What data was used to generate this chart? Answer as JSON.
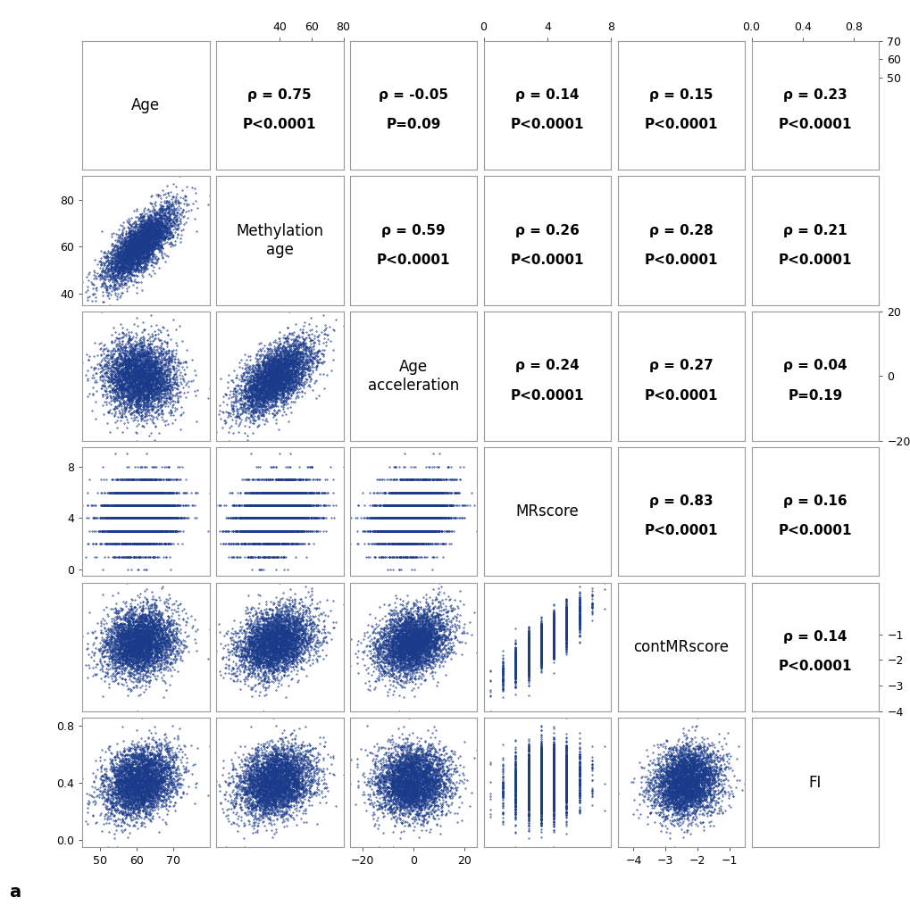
{
  "n_vars": 6,
  "dot_color": "#1a3a8a",
  "dot_size": 2.5,
  "dot_alpha": 0.6,
  "background_color": "#ffffff",
  "panel_edge_color": "#999999",
  "corr_display": [
    [
      "",
      "ρ = 0.75\nP<0.0001",
      "ρ = -0.05\nP=0.09",
      "ρ = 0.14\nP<0.0001",
      "ρ = 0.15\nP<0.0001",
      "ρ = 0.23\nP<0.0001"
    ],
    [
      "",
      "",
      "ρ = 0.59\nP<0.0001",
      "ρ = 0.26\nP<0.0001",
      "ρ = 0.28\nP<0.0001",
      "ρ = 0.21\nP<0.0001"
    ],
    [
      "",
      "",
      "",
      "ρ = 0.24\nP<0.0001",
      "ρ = 0.27\nP<0.0001",
      "ρ = 0.04\nP=0.19"
    ],
    [
      "",
      "",
      "",
      "",
      "ρ = 0.83\nP<0.0001",
      "ρ = 0.16\nP<0.0001"
    ],
    [
      "",
      "",
      "",
      "",
      "",
      "ρ = 0.14\nP<0.0001"
    ],
    [
      "",
      "",
      "",
      "",
      "",
      ""
    ]
  ],
  "diag_labels": [
    "Age",
    "Methylation\nage",
    "Age\nacceleration",
    "MRscore",
    "contMRscore",
    "FI"
  ],
  "ranges": [
    [
      45,
      80
    ],
    [
      35,
      90
    ],
    [
      -25,
      25
    ],
    [
      -0.5,
      9.5
    ],
    [
      -4.5,
      -0.5
    ],
    [
      -0.05,
      0.85
    ]
  ],
  "top_ticks": {
    "1": [
      40,
      60,
      80
    ],
    "3": [
      0,
      4,
      8
    ],
    "5": [
      0.0,
      0.4,
      0.8
    ]
  },
  "right_ticks": {
    "0": [
      50,
      60,
      70
    ],
    "2": [
      -20,
      0,
      20
    ],
    "4": [
      -4,
      -3,
      -2,
      -1
    ]
  },
  "bottom_ticks": {
    "0": [
      50,
      60,
      70
    ],
    "2": [
      -20,
      0,
      20
    ],
    "4": [
      -4,
      -3,
      -2,
      -1
    ]
  },
  "left_ticks": {
    "1": [
      40,
      60,
      80
    ],
    "3": [
      0,
      4,
      8
    ],
    "5": [
      0.0,
      0.4,
      0.8
    ]
  },
  "n_points": 4000,
  "seed": 42,
  "label_fontsize": 12,
  "corr_fontsize": 11,
  "tick_fontsize": 9,
  "annotation_label": "a",
  "annotation_fontsize": 14
}
